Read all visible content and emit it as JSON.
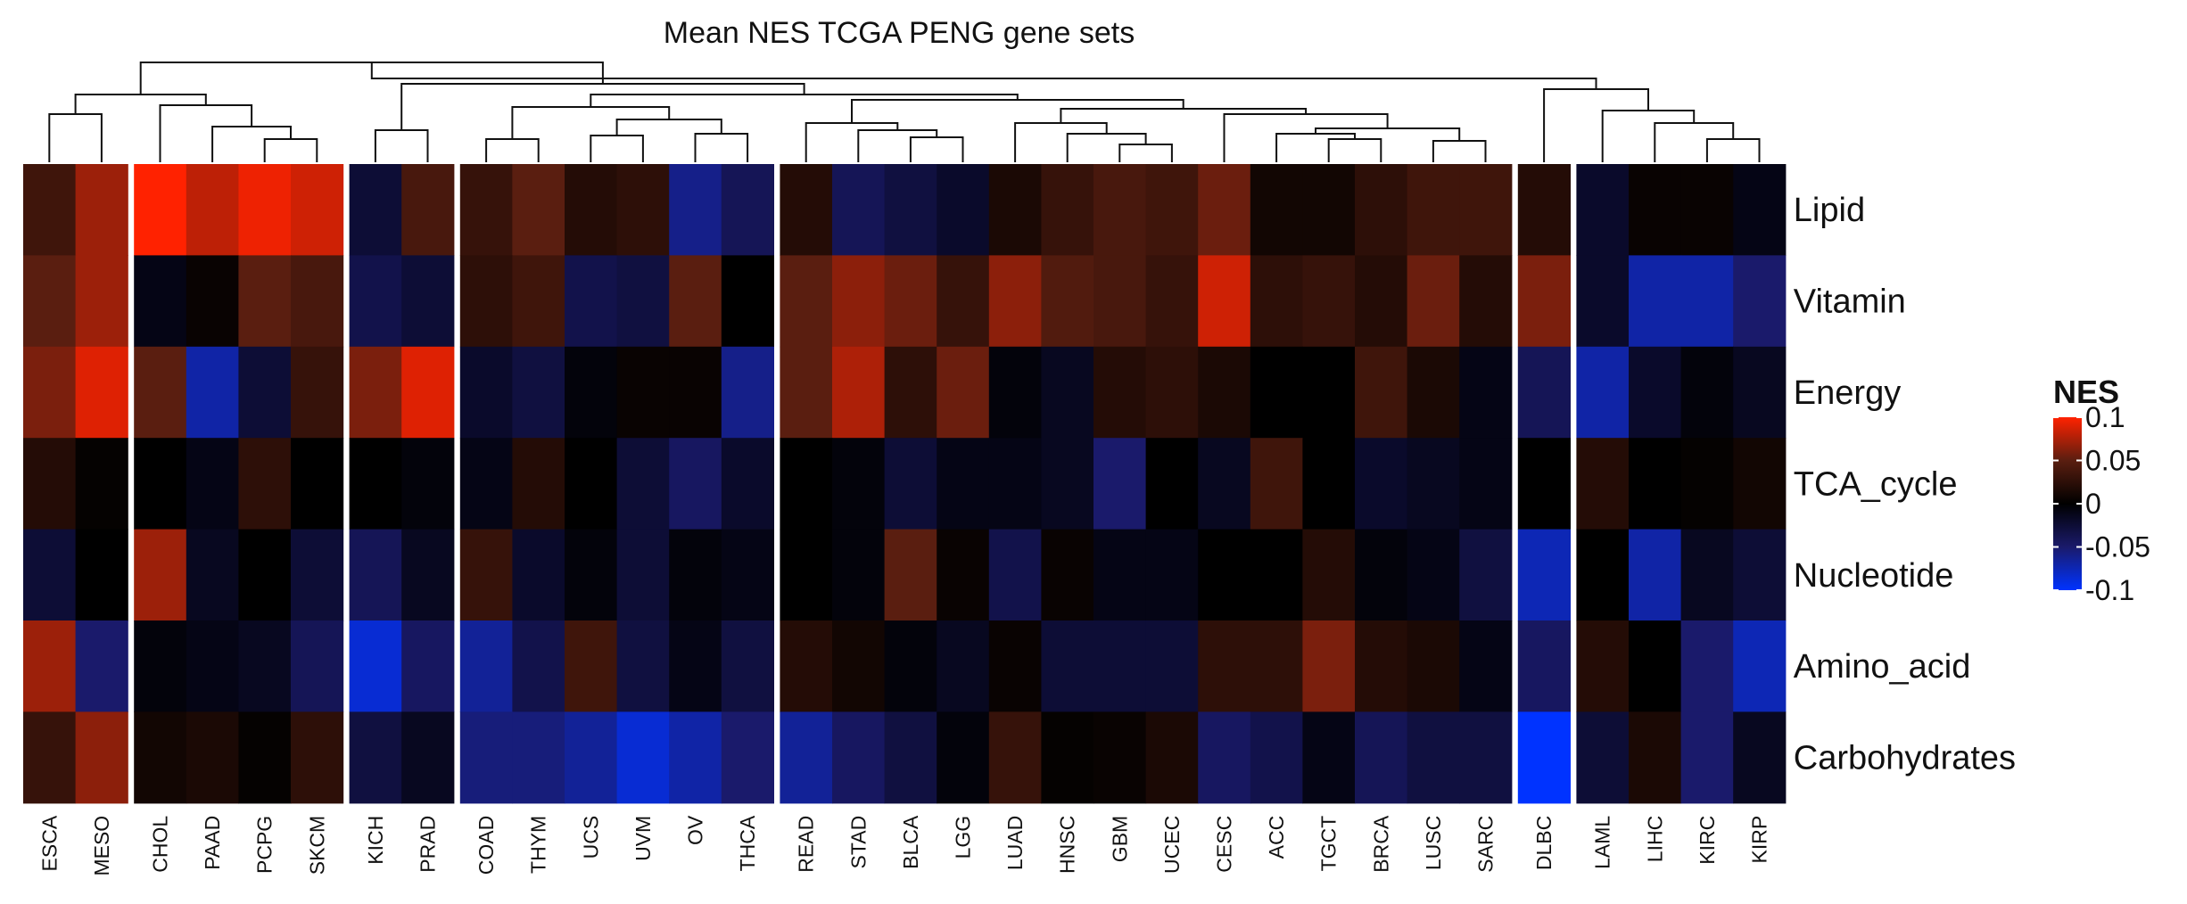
{
  "chart_data": {
    "type": "heatmap",
    "title": "Mean NES TCGA PENG gene sets",
    "rows": [
      "Lipid",
      "Vitamin",
      "Energy",
      "TCA_cycle",
      "Nucleotide",
      "Amino_acid",
      "Carbohydrates"
    ],
    "columns": [
      "ESCA",
      "MESO",
      "CHOL",
      "PAAD",
      "PCPG",
      "SKCM",
      "KICH",
      "PRAD",
      "COAD",
      "THYM",
      "UCS",
      "UVM",
      "OV",
      "THCA",
      "READ",
      "STAD",
      "BLCA",
      "LGG",
      "LUAD",
      "HNSC",
      "GBM",
      "UCEC",
      "CESC",
      "ACC",
      "TGCT",
      "BRCA",
      "LUSC",
      "SARC",
      "DLBC",
      "LAML",
      "LIHC",
      "KIRC",
      "KIRP"
    ],
    "column_groups": [
      [
        "ESCA",
        "MESO"
      ],
      [
        "CHOL",
        "PAAD",
        "PCPG",
        "SKCM"
      ],
      [
        "KICH",
        "PRAD"
      ],
      [
        "COAD",
        "THYM",
        "UCS",
        "UVM",
        "OV",
        "THCA"
      ],
      [
        "READ",
        "STAD",
        "BLCA",
        "LGG",
        "LUAD",
        "HNSC",
        "GBM",
        "UCEC",
        "CESC",
        "ACC",
        "TGCT",
        "BRCA",
        "LUSC",
        "SARC"
      ],
      [
        "DLBC"
      ],
      [
        "LAML",
        "LIHC",
        "KIRC",
        "KIRP"
      ]
    ],
    "values": [
      [
        0.035,
        0.07,
        0.11,
        0.08,
        0.095,
        0.085,
        -0.025,
        0.04,
        0.03,
        0.05,
        0.02,
        0.025,
        -0.06,
        -0.04,
        0.02,
        -0.04,
        -0.03,
        -0.02,
        0.015,
        0.03,
        0.04,
        0.035,
        0.055,
        0.01,
        0.01,
        0.025,
        0.035,
        0.035,
        0.02,
        -0.02,
        0.005,
        0.005,
        -0.01
      ],
      [
        0.05,
        0.07,
        -0.01,
        0.005,
        0.05,
        0.04,
        -0.035,
        -0.025,
        0.025,
        0.035,
        -0.035,
        -0.03,
        0.05,
        0.0,
        0.05,
        0.065,
        0.055,
        0.03,
        0.065,
        0.045,
        0.04,
        0.03,
        0.085,
        0.025,
        0.03,
        0.02,
        0.055,
        0.02,
        0.06,
        -0.02,
        -0.07,
        -0.07,
        -0.05
      ],
      [
        0.06,
        0.09,
        0.05,
        -0.07,
        -0.025,
        0.03,
        0.06,
        0.09,
        -0.02,
        -0.03,
        -0.005,
        0.005,
        0.005,
        -0.06,
        0.05,
        0.075,
        0.025,
        0.055,
        -0.005,
        -0.015,
        0.02,
        0.025,
        0.015,
        0.0,
        0.0,
        0.035,
        0.015,
        -0.01,
        -0.04,
        -0.07,
        -0.02,
        -0.005,
        -0.015
      ],
      [
        0.02,
        0.003,
        0.0,
        -0.01,
        0.025,
        0.0,
        0.0,
        -0.005,
        -0.01,
        0.02,
        0.0,
        -0.025,
        -0.045,
        -0.02,
        0.0,
        -0.005,
        -0.025,
        -0.01,
        -0.01,
        -0.015,
        -0.05,
        0.0,
        -0.015,
        0.035,
        0.0,
        -0.02,
        -0.015,
        -0.01,
        0.0,
        0.02,
        0.0,
        0.003,
        0.01
      ],
      [
        -0.025,
        0.0,
        0.07,
        -0.015,
        0.0,
        -0.025,
        -0.04,
        -0.015,
        0.03,
        -0.02,
        -0.005,
        -0.025,
        -0.005,
        -0.01,
        0.0,
        -0.005,
        0.05,
        0.005,
        -0.035,
        0.005,
        -0.01,
        -0.01,
        0.0,
        0.0,
        0.02,
        -0.005,
        -0.01,
        -0.03,
        -0.075,
        0.0,
        -0.07,
        -0.015,
        -0.025
      ],
      [
        0.07,
        -0.05,
        -0.005,
        -0.01,
        -0.015,
        -0.04,
        -0.085,
        -0.045,
        -0.065,
        -0.035,
        0.035,
        -0.03,
        -0.01,
        -0.03,
        0.02,
        0.01,
        -0.005,
        -0.015,
        0.005,
        -0.025,
        -0.025,
        -0.025,
        0.025,
        0.025,
        0.06,
        0.02,
        0.015,
        -0.01,
        -0.045,
        0.02,
        0.0,
        -0.05,
        -0.075
      ],
      [
        0.03,
        0.065,
        0.01,
        0.015,
        0.003,
        0.025,
        -0.03,
        -0.015,
        -0.055,
        -0.055,
        -0.065,
        -0.085,
        -0.07,
        -0.05,
        -0.065,
        -0.045,
        -0.03,
        -0.005,
        0.03,
        0.003,
        0.005,
        0.015,
        -0.045,
        -0.035,
        -0.01,
        -0.04,
        -0.03,
        -0.03,
        -0.115,
        -0.025,
        0.015,
        -0.05,
        -0.015
      ]
    ],
    "color_scale": {
      "title": "NES",
      "min": -0.1,
      "max": 0.1,
      "ticks": [
        0.1,
        0.05,
        0,
        -0.05,
        -0.1
      ],
      "tick_labels": [
        "0.1",
        "0.05",
        "0",
        "-0.05",
        "-0.1"
      ],
      "low_color": "#0033ff",
      "mid_low_color": "#1a1a6b",
      "mid_color": "#000000",
      "mid_high_color": "#5a1e10",
      "high_color": "#ff2200"
    },
    "dendrogram": "hierarchical clustering of columns shown above the heatmap",
    "legend_position": "right"
  }
}
